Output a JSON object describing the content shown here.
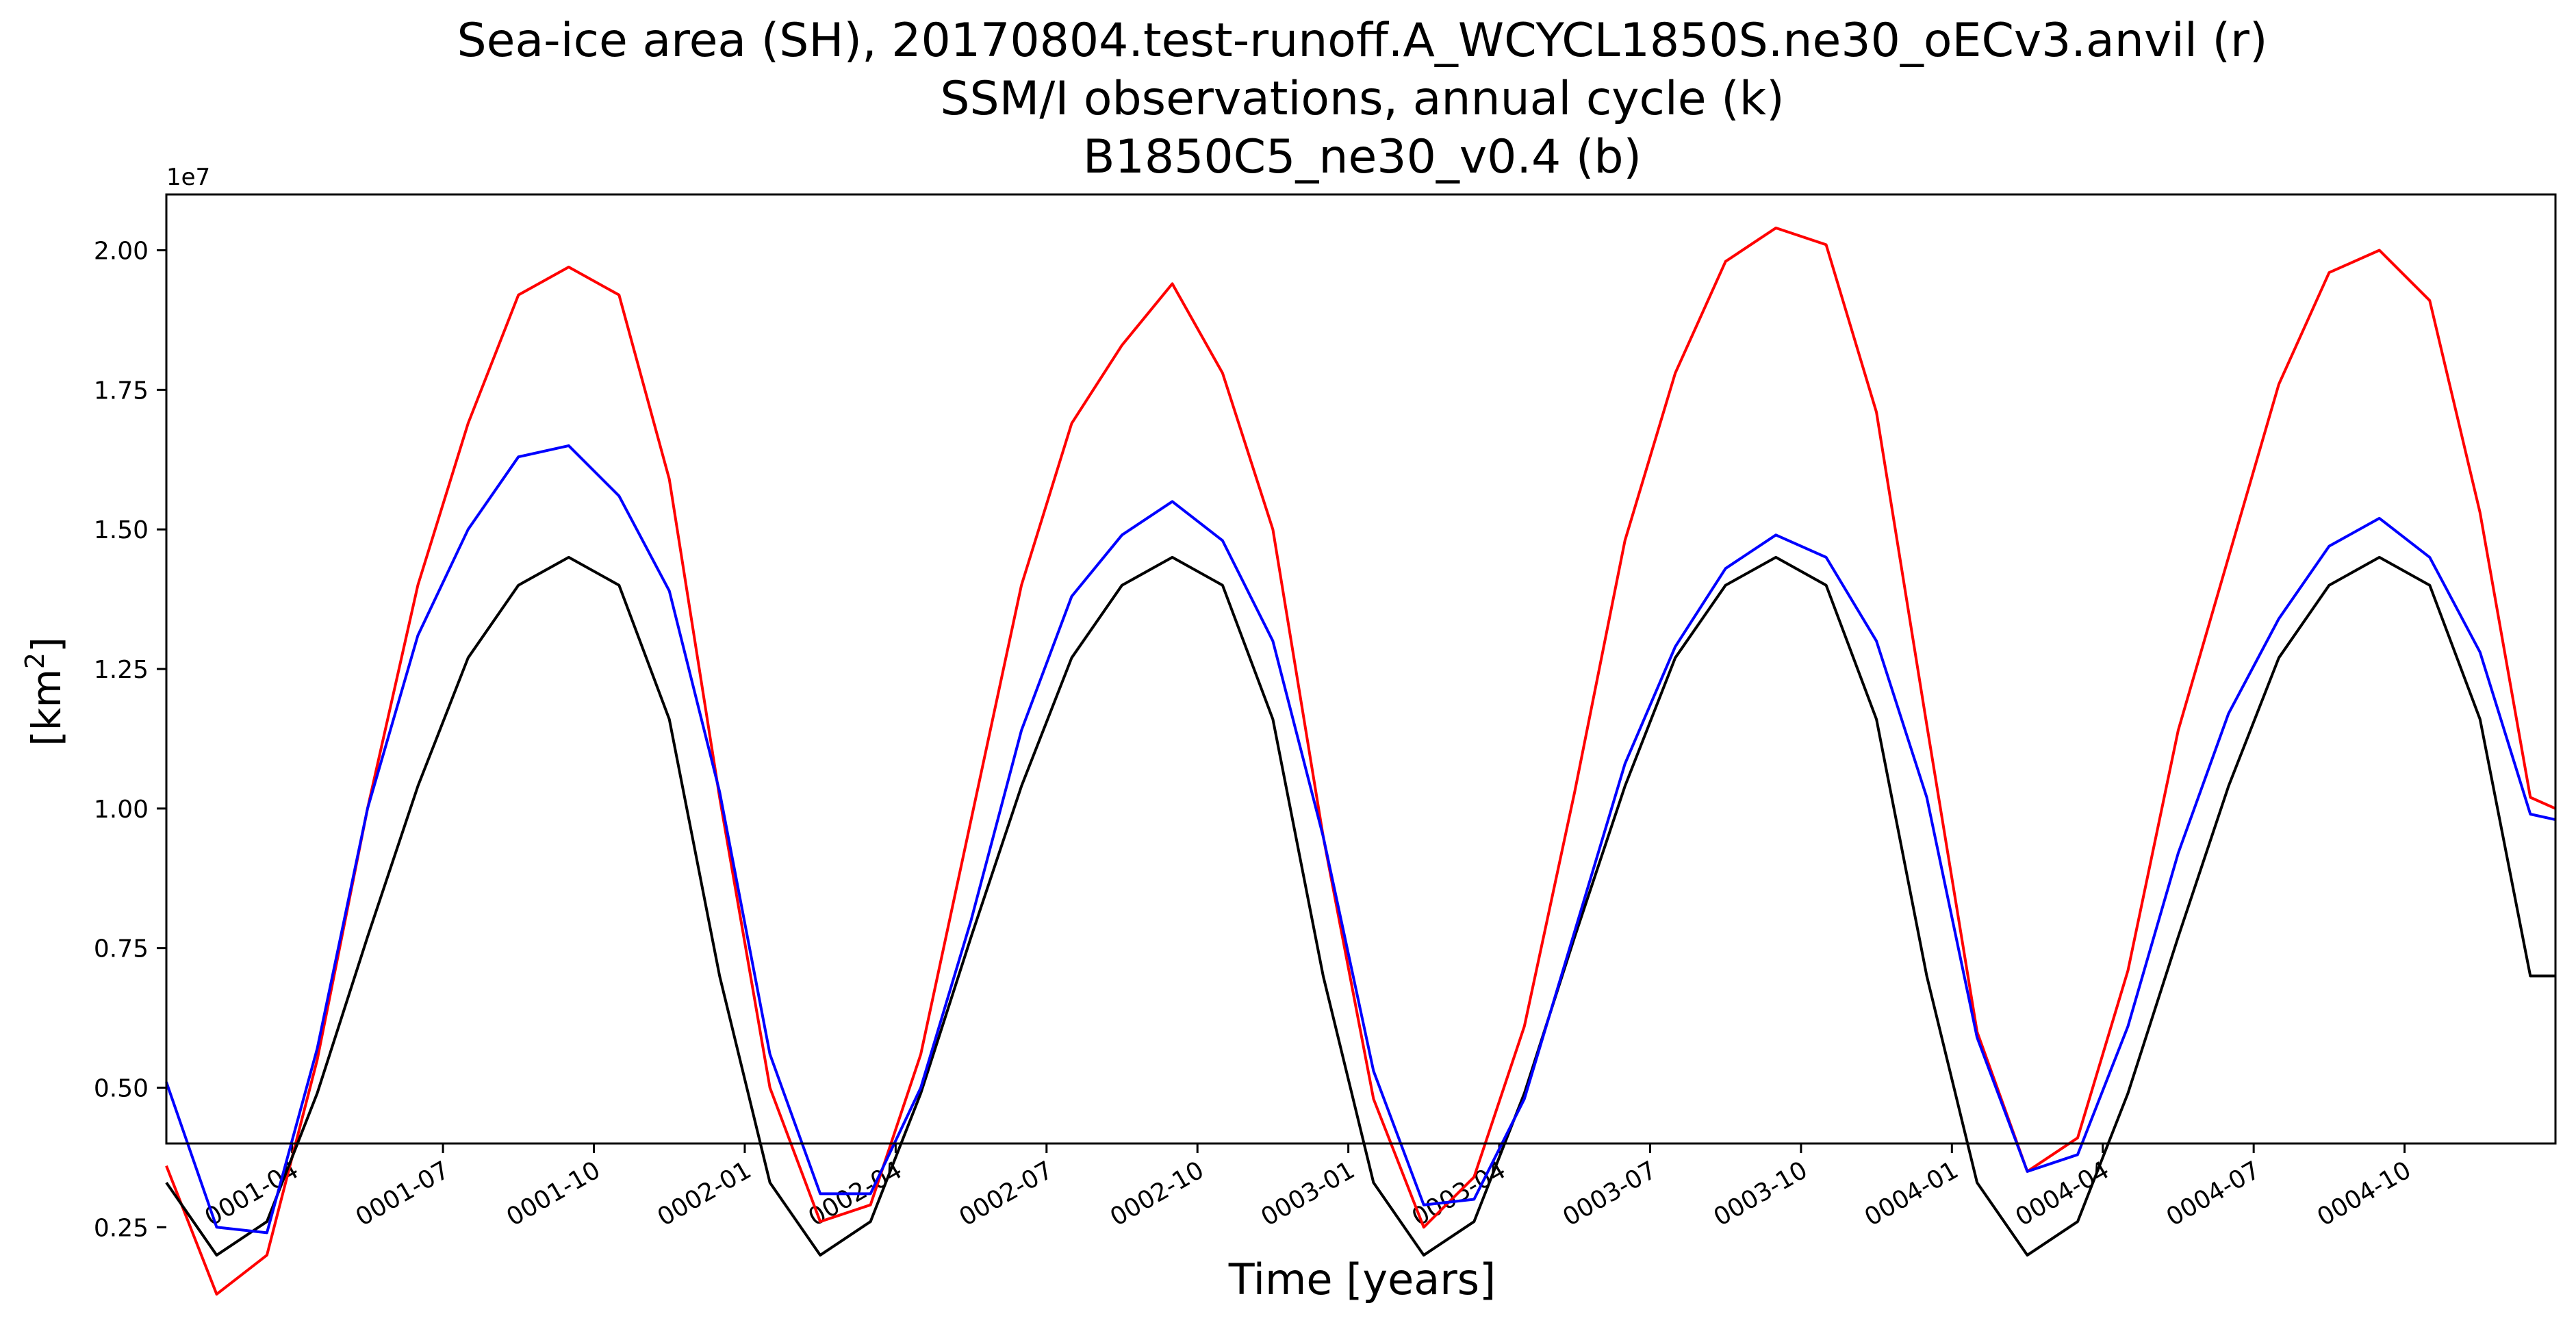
{
  "chart_data": {
    "type": "line",
    "title_lines": [
      "Sea-ice area (SH), 20170804.test-runoff.A_WCYCL1850S.ne30_oECv3.anvil (r)",
      "SSM/I observations, annual cycle (k)",
      "B1850C5_ne30_v0.4 (b)"
    ],
    "xlabel": "Time [years]",
    "ylabel_base": "[km",
    "ylabel_sup": "2",
    "ylabel_close": "]",
    "offset_label": "1e7",
    "xlim": [
      0.5,
      48
    ],
    "ylim": [
      0.4,
      2.1
    ],
    "xticks": [
      {
        "x": 3,
        "label": "0001-04"
      },
      {
        "x": 6,
        "label": "0001-07"
      },
      {
        "x": 9,
        "label": "0001-10"
      },
      {
        "x": 12,
        "label": "0002-01"
      },
      {
        "x": 15,
        "label": "0002-04"
      },
      {
        "x": 18,
        "label": "0002-07"
      },
      {
        "x": 21,
        "label": "0002-10"
      },
      {
        "x": 24,
        "label": "0003-01"
      },
      {
        "x": 27,
        "label": "0003-04"
      },
      {
        "x": 30,
        "label": "0003-07"
      },
      {
        "x": 33,
        "label": "0003-10"
      },
      {
        "x": 36,
        "label": "0004-01"
      },
      {
        "x": 39,
        "label": "0004-04"
      },
      {
        "x": 42,
        "label": "0004-07"
      },
      {
        "x": 45,
        "label": "0004-10"
      }
    ],
    "yticks": [
      {
        "y": 0.25,
        "label": "0.25"
      },
      {
        "y": 0.5,
        "label": "0.50"
      },
      {
        "y": 0.75,
        "label": "0.75"
      },
      {
        "y": 1.0,
        "label": "1.00"
      },
      {
        "y": 1.25,
        "label": "1.25"
      },
      {
        "y": 1.5,
        "label": "1.50"
      },
      {
        "y": 1.75,
        "label": "1.75"
      },
      {
        "y": 2.0,
        "label": "2.00"
      }
    ],
    "x": [
      0.5,
      1.5,
      2.5,
      3.5,
      4.5,
      5.5,
      6.5,
      7.5,
      8.5,
      9.5,
      10.5,
      11.5,
      12.5,
      13.5,
      14.5,
      15.5,
      16.5,
      17.5,
      18.5,
      19.5,
      20.5,
      21.5,
      22.5,
      23.5,
      24.5,
      25.5,
      26.5,
      27.5,
      28.5,
      29.5,
      30.5,
      31.5,
      32.5,
      33.5,
      34.5,
      35.5,
      36.5,
      37.5,
      38.5,
      39.5,
      40.5,
      41.5,
      42.5,
      43.5,
      44.5,
      45.5,
      46.5,
      47.5,
      48
    ],
    "series": [
      {
        "color": "#ff0000",
        "values": [
          0.36,
          0.13,
          0.2,
          0.55,
          1.0,
          1.4,
          1.69,
          1.92,
          1.97,
          1.92,
          1.59,
          1.02,
          0.5,
          0.26,
          0.29,
          0.56,
          0.98,
          1.4,
          1.69,
          1.83,
          1.94,
          1.78,
          1.5,
          0.95,
          0.48,
          0.25,
          0.34,
          0.61,
          1.03,
          1.48,
          1.78,
          1.98,
          2.04,
          2.01,
          1.71,
          1.15,
          0.6,
          0.35,
          0.41,
          0.71,
          1.14,
          1.45,
          1.76,
          1.96,
          2.0,
          1.91,
          1.53,
          1.02,
          1.0
        ]
      },
      {
        "color": "#000000",
        "values": [
          0.33,
          0.2,
          0.26,
          0.49,
          0.77,
          1.04,
          1.27,
          1.4,
          1.45,
          1.4,
          1.16,
          0.7,
          0.33,
          0.2,
          0.26,
          0.49,
          0.77,
          1.04,
          1.27,
          1.4,
          1.45,
          1.4,
          1.16,
          0.7,
          0.33,
          0.2,
          0.26,
          0.49,
          0.77,
          1.04,
          1.27,
          1.4,
          1.45,
          1.4,
          1.16,
          0.7,
          0.33,
          0.2,
          0.26,
          0.49,
          0.77,
          1.04,
          1.27,
          1.4,
          1.45,
          1.4,
          1.16,
          0.7,
          0.7
        ]
      },
      {
        "color": "#0000ff",
        "values": [
          0.51,
          0.25,
          0.24,
          0.57,
          1.0,
          1.31,
          1.5,
          1.63,
          1.65,
          1.56,
          1.39,
          1.03,
          0.56,
          0.31,
          0.31,
          0.5,
          0.8,
          1.14,
          1.38,
          1.49,
          1.55,
          1.48,
          1.3,
          0.95,
          0.53,
          0.29,
          0.3,
          0.48,
          0.78,
          1.08,
          1.29,
          1.43,
          1.49,
          1.45,
          1.3,
          1.02,
          0.59,
          0.35,
          0.38,
          0.61,
          0.92,
          1.17,
          1.34,
          1.47,
          1.52,
          1.45,
          1.28,
          0.99,
          0.98
        ]
      }
    ],
    "grid": false,
    "legend": "none"
  }
}
